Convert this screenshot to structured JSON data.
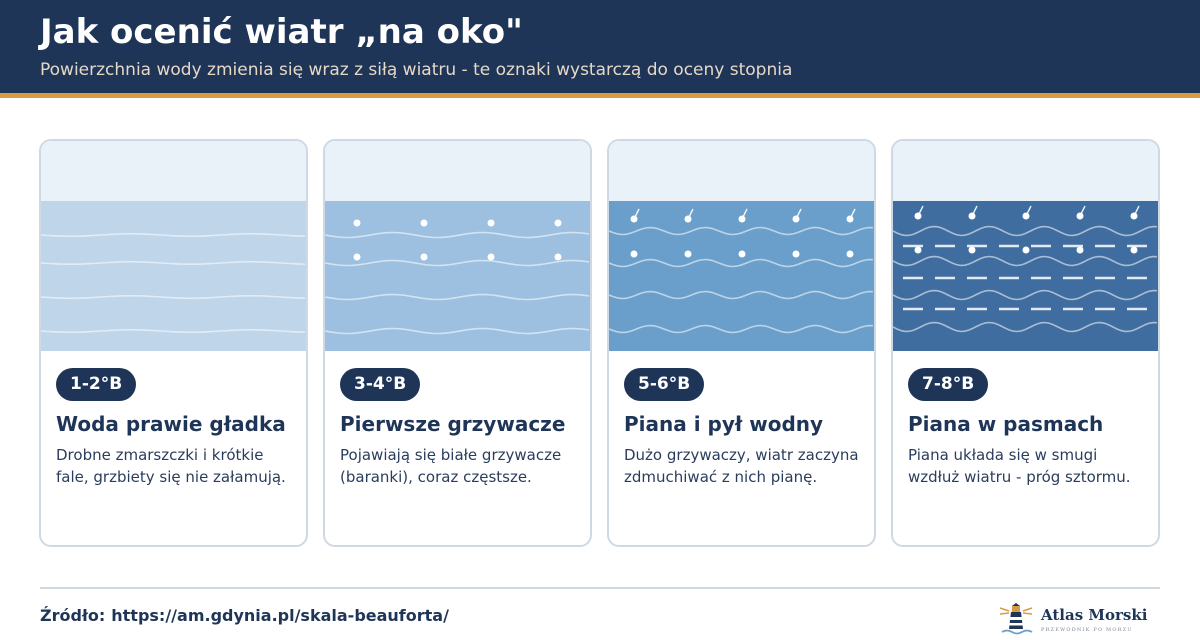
{
  "header": {
    "title": "Jak ocenić wiatr „na oko\"",
    "subtitle": "Powierzchnia wody zmienia się wraz z siłą wiatru - te oznaki wystarczą do oceny stopnia"
  },
  "colors": {
    "header_bg": "#1e3558",
    "accent_stripe": "#d89a43",
    "sky": "#e9f1f9",
    "water": [
      "#bed5ea",
      "#9dc0e0",
      "#6a9fcb",
      "#3f6d9f"
    ]
  },
  "cards": [
    {
      "badge": "1-2°B",
      "title": "Woda prawie gładka",
      "desc": "Drobne zmarszczki i krótkie fale, grzbiety się nie załamują.",
      "level": 1
    },
    {
      "badge": "3-4°B",
      "title": "Pierwsze grzywacze",
      "desc": "Pojawiają się białe grzywacze (baranki), coraz częstsze.",
      "level": 2
    },
    {
      "badge": "5-6°B",
      "title": "Piana i pył wodny",
      "desc": "Dużo grzywaczy, wiatr zaczyna zdmuchiwać z nich pianę.",
      "level": 3
    },
    {
      "badge": "7-8°B",
      "title": "Piana w pasmach",
      "desc": "Piana układa się w smugi wzdłuż wiatru - próg sztormu.",
      "level": 4
    }
  ],
  "footer": {
    "source_label": "Źródło:",
    "source_url": "https://am.gdynia.pl/skala-beauforta/",
    "brand_name": "Atlas Morski",
    "brand_tagline": "PRZEWODNIK PO MORZU",
    "brand_icon": "lighthouse-icon"
  }
}
